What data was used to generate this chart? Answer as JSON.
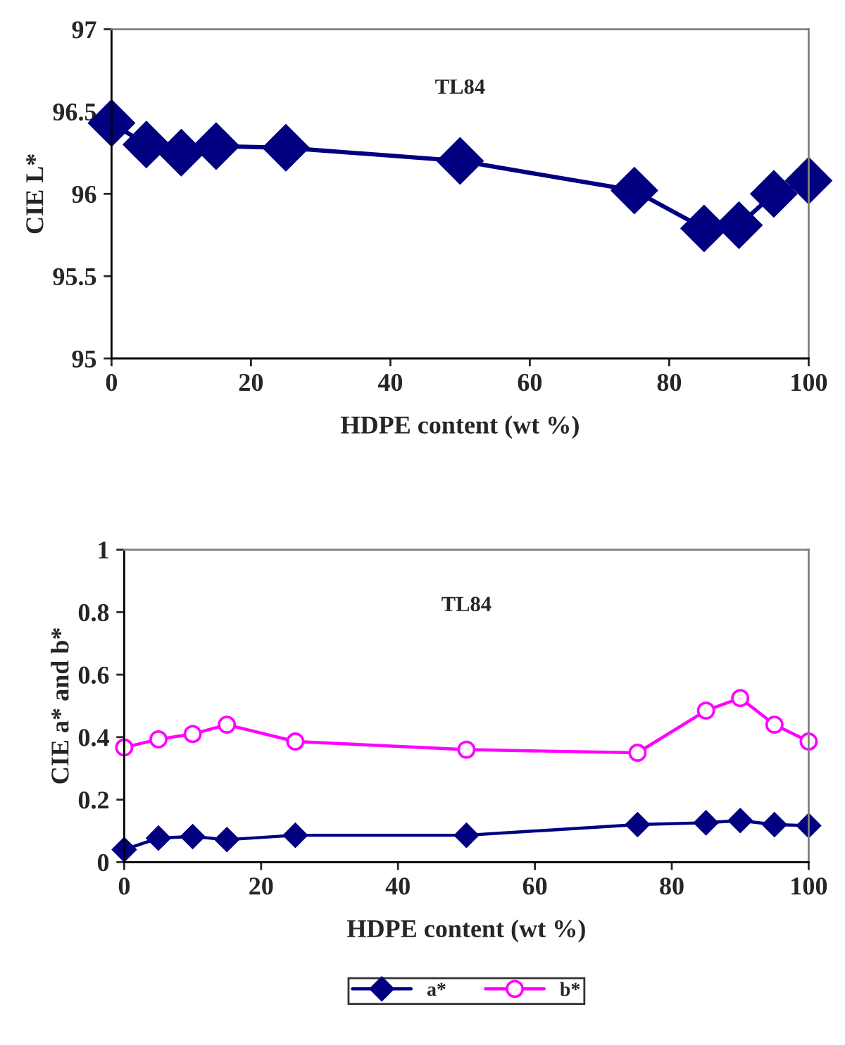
{
  "chart_data": [
    {
      "type": "line",
      "annotations": [
        "TL84"
      ],
      "xlabel": "HDPE content (wt %)",
      "ylabel": "CIE L*",
      "x": [
        0,
        5,
        10,
        15,
        25,
        50,
        75,
        85,
        90,
        95,
        100
      ],
      "series": [
        {
          "color": "#000080",
          "marker": "diamond",
          "values": [
            96.43,
            96.3,
            96.25,
            96.29,
            96.28,
            96.2,
            96.02,
            95.79,
            95.81,
            96.0,
            96.08
          ]
        }
      ],
      "xlim": [
        0,
        100
      ],
      "xticks": [
        0,
        20,
        40,
        60,
        80,
        100
      ],
      "ylim": [
        95,
        97
      ],
      "yticks": [
        95,
        {
          "value": 95.5,
          "label": "95.5"
        },
        96,
        {
          "value": 96.5,
          "label": "96.5"
        },
        97
      ],
      "grid": false,
      "legend": false
    },
    {
      "type": "line",
      "annotations": [
        "TL84"
      ],
      "xlabel": "HDPE content (wt %)",
      "ylabel": "CIE a* and b*",
      "x": [
        0,
        5,
        10,
        15,
        25,
        50,
        75,
        85,
        90,
        95,
        100
      ],
      "series": [
        {
          "name": "a*",
          "color": "#000080",
          "marker": "diamond",
          "values": [
            0.04,
            0.077,
            0.082,
            0.072,
            0.086,
            0.086,
            0.12,
            0.126,
            0.133,
            0.12,
            0.117
          ]
        },
        {
          "name": "b*",
          "color": "#ff00ff",
          "marker": "circle",
          "values": [
            0.367,
            0.393,
            0.41,
            0.44,
            0.386,
            0.36,
            0.35,
            0.485,
            0.525,
            0.44,
            0.386
          ]
        }
      ],
      "xlim": [
        0,
        100
      ],
      "xticks": [
        0,
        20,
        40,
        60,
        80,
        100
      ],
      "ylim": [
        0,
        1
      ],
      "yticks": [
        0,
        0.2,
        0.4,
        0.6,
        0.8,
        1
      ],
      "grid": false,
      "legend": "bottom"
    }
  ]
}
